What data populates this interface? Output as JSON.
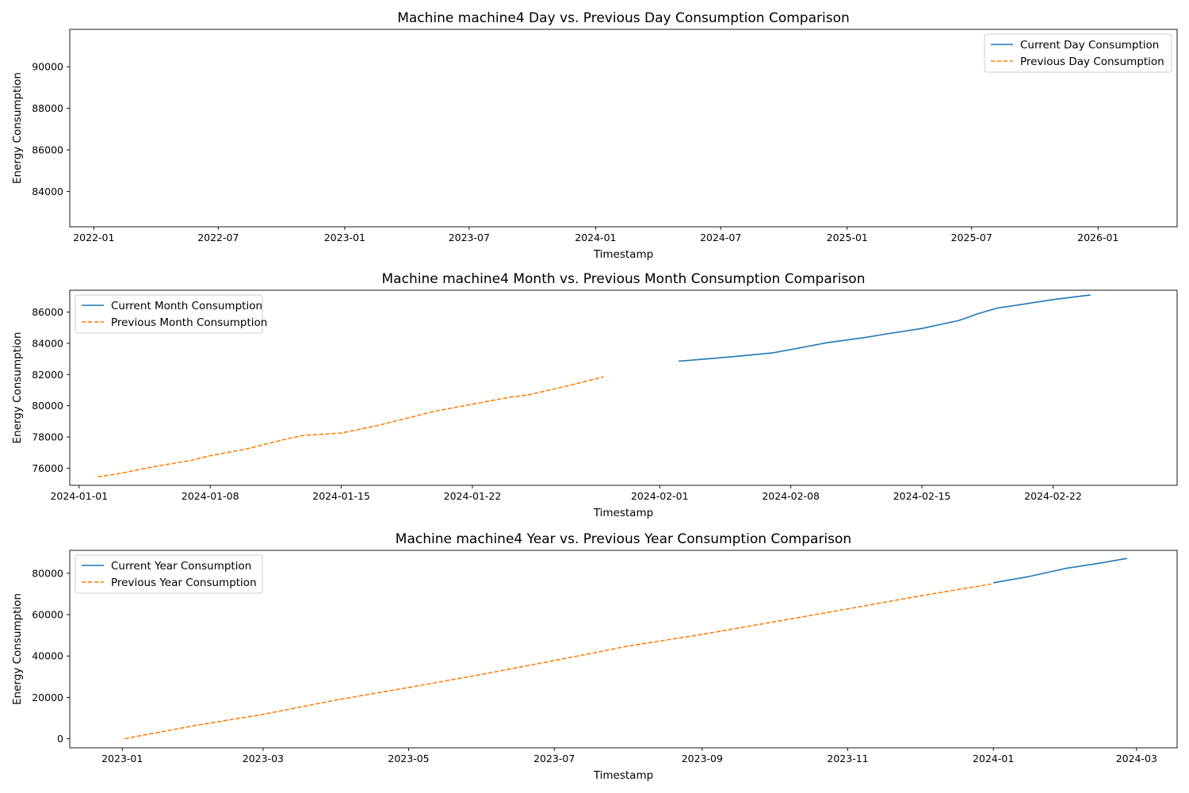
{
  "chart_data": [
    {
      "type": "line",
      "title": "Machine machine4 Day vs. Previous Day Consumption Comparison",
      "xlabel": "Timestamp",
      "ylabel": "Energy Consumption",
      "x_type": "date",
      "xlim": [
        "2021-11-27",
        "2026-04-26"
      ],
      "ylim": [
        82300,
        91800
      ],
      "xticks": [
        "2022-01",
        "2022-07",
        "2023-01",
        "2023-07",
        "2024-01",
        "2024-07",
        "2025-01",
        "2025-07",
        "2026-01"
      ],
      "yticks": [
        84000,
        86000,
        88000,
        90000
      ],
      "legend_position": "top-right",
      "series": [
        {
          "name": "Current Day Consumption",
          "color": "#1f77b4",
          "style": "solid",
          "points": []
        },
        {
          "name": "Previous Day Consumption",
          "color": "#ff7f0e",
          "style": "dashed",
          "points": []
        }
      ]
    },
    {
      "type": "line",
      "title": "Machine machine4 Month vs. Previous Month Consumption Comparison",
      "xlabel": "Timestamp",
      "ylabel": "Energy Consumption",
      "x_type": "date",
      "xlim": [
        "2023-12-31T12:00",
        "2024-02-28T15:00"
      ],
      "ylim": [
        74900,
        87400
      ],
      "xticks": [
        "2024-01-01",
        "2024-01-08",
        "2024-01-15",
        "2024-01-22",
        "2024-02-01",
        "2024-02-08",
        "2024-02-15",
        "2024-02-22"
      ],
      "yticks": [
        76000,
        78000,
        80000,
        82000,
        84000,
        86000
      ],
      "legend_position": "top-left",
      "series": [
        {
          "name": "Current Month Consumption",
          "color": "#1f77b4",
          "style": "solid",
          "points": [
            [
              "2024-02-02",
              82850
            ],
            [
              "2024-02-03",
              82950
            ],
            [
              "2024-02-05",
              83150
            ],
            [
              "2024-02-07",
              83380
            ],
            [
              "2024-02-08",
              83600
            ],
            [
              "2024-02-10",
              84050
            ],
            [
              "2024-02-12",
              84380
            ],
            [
              "2024-02-13",
              84580
            ],
            [
              "2024-02-15",
              84950
            ],
            [
              "2024-02-17",
              85470
            ],
            [
              "2024-02-18",
              85900
            ],
            [
              "2024-02-19",
              86250
            ],
            [
              "2024-02-20",
              86430
            ],
            [
              "2024-02-22",
              86800
            ],
            [
              "2024-02-24",
              87100
            ]
          ]
        },
        {
          "name": "Previous Month Consumption",
          "color": "#ff7f0e",
          "style": "dashed",
          "points": [
            [
              "2024-01-02",
              75450
            ],
            [
              "2024-01-03",
              75620
            ],
            [
              "2024-01-05",
              76100
            ],
            [
              "2024-01-07",
              76500
            ],
            [
              "2024-01-08",
              76800
            ],
            [
              "2024-01-10",
              77250
            ],
            [
              "2024-01-12",
              77850
            ],
            [
              "2024-01-13",
              78100
            ],
            [
              "2024-01-15",
              78250
            ],
            [
              "2024-01-17",
              78750
            ],
            [
              "2024-01-19",
              79350
            ],
            [
              "2024-01-20",
              79650
            ],
            [
              "2024-01-22",
              80100
            ],
            [
              "2024-01-24",
              80550
            ],
            [
              "2024-01-25",
              80700
            ],
            [
              "2024-01-27",
              81250
            ],
            [
              "2024-01-29",
              81850
            ]
          ]
        }
      ]
    },
    {
      "type": "line",
      "title": "Machine machine4 Year vs. Previous Year Consumption Comparison",
      "xlabel": "Timestamp",
      "ylabel": "Energy Consumption",
      "x_type": "date",
      "xlim": [
        "2022-12-10",
        "2024-03-18"
      ],
      "ylim": [
        -4400,
        91100
      ],
      "xticks": [
        "2023-01",
        "2023-03",
        "2023-05",
        "2023-07",
        "2023-09",
        "2023-11",
        "2024-01",
        "2024-03"
      ],
      "yticks": [
        0,
        20000,
        40000,
        60000,
        80000
      ],
      "legend_position": "top-left",
      "series": [
        {
          "name": "Current Year Consumption",
          "color": "#1f77b4",
          "style": "solid",
          "points": [
            [
              "2024-01-01",
              75400
            ],
            [
              "2024-01-15",
              78200
            ],
            [
              "2024-02-01",
              82500
            ],
            [
              "2024-02-15",
              85000
            ],
            [
              "2024-02-26",
              87200
            ]
          ]
        },
        {
          "name": "Previous Year Consumption",
          "color": "#ff7f0e",
          "style": "dashed",
          "points": [
            [
              "2023-01-02",
              0
            ],
            [
              "2023-02-01",
              6500
            ],
            [
              "2023-03-01",
              11800
            ],
            [
              "2023-04-01",
              18800
            ],
            [
              "2023-05-01",
              24800
            ],
            [
              "2023-06-01",
              31200
            ],
            [
              "2023-07-01",
              37800
            ],
            [
              "2023-08-01",
              44800
            ],
            [
              "2023-09-01",
              50500
            ],
            [
              "2023-10-01",
              56500
            ],
            [
              "2023-11-01",
              62800
            ],
            [
              "2023-12-01",
              69000
            ],
            [
              "2023-12-31",
              74800
            ]
          ]
        }
      ]
    }
  ]
}
